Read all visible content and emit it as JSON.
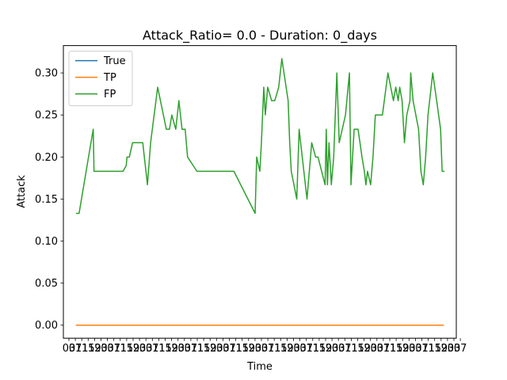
{
  "chart_data": {
    "type": "line",
    "title": "Attack_Ratio= 0.0 - Duration: 0_days",
    "xlabel": "Time",
    "ylabel": "Attack",
    "ylim": [
      -0.0155,
      0.3325
    ],
    "xlim": [
      0,
      100
    ],
    "y_ticks": [
      0.0,
      0.05,
      0.1,
      0.15,
      0.2,
      0.25,
      0.3
    ],
    "y_tick_labels": [
      "0.00",
      "0.05",
      "0.10",
      "0.15",
      "0.20",
      "0.25",
      "0.30"
    ],
    "x_tick_labels": [
      "03",
      "07",
      "11",
      "15",
      "19",
      "23",
      "03",
      "07",
      "11",
      "15",
      "19",
      "23",
      "03",
      "07",
      "11",
      "15",
      "19",
      "23",
      "03",
      "07",
      "11",
      "15",
      "19",
      "23",
      "03",
      "07",
      "11",
      "15",
      "19",
      "23",
      "03",
      "07",
      "11",
      "15",
      "19",
      "23",
      "03",
      "07",
      "11",
      "15",
      "19",
      "23",
      "03",
      "07",
      "11",
      "15",
      "19",
      "23",
      "03",
      "07",
      "11",
      "15",
      "19",
      "23",
      "03",
      "07",
      "11",
      "15",
      "19",
      "23",
      "03",
      "07"
    ],
    "grid": false,
    "legend_position": "top-left",
    "series": [
      {
        "name": "True",
        "color": "#1f77b4",
        "x": [
          3.2,
          96.8
        ],
        "y": [
          0.0,
          0.0
        ]
      },
      {
        "name": "TP",
        "color": "#ff7f0e",
        "x": [
          3.2,
          96.8
        ],
        "y": [
          0.0,
          0.0
        ]
      },
      {
        "name": "FP",
        "color": "#2ca02c",
        "x": [
          3.2,
          4.0,
          6.4,
          7.6,
          7.8,
          11.6,
          13.2,
          13.4,
          15.0,
          15.2,
          16.0,
          16.2,
          16.8,
          17.6,
          18.0,
          19.4,
          20.2,
          21.4,
          22.2,
          24.0,
          26.2,
          26.6,
          27.0,
          27.6,
          28.6,
          29.4,
          30.2,
          30.4,
          30.8,
          31.0,
          31.6,
          34.0,
          39.0,
          40.0,
          43.0,
          43.4,
          48.8,
          49.2,
          50.0,
          50.4,
          51.0,
          51.4,
          52.0,
          53.0,
          53.8,
          54.8,
          55.6,
          57.2,
          57.6,
          58.0,
          59.4,
          60.0,
          62.0,
          63.2,
          64.2,
          64.8,
          66.6,
          66.9,
          67.2,
          67.6,
          68.2,
          68.8,
          69.6,
          70.2,
          71.8,
          72.8,
          73.2,
          74.0,
          75.0,
          76.0,
          76.6,
          77.0,
          77.4,
          78.2,
          78.8,
          79.4,
          80.4,
          81.2,
          82.6,
          84.0,
          84.6,
          85.2,
          85.6,
          86.2,
          86.8,
          87.4,
          88.2,
          88.4,
          89.0,
          90.4,
          91.0,
          91.6,
          92.2,
          92.8,
          93.6,
          94.0,
          95.0,
          96.0,
          96.4,
          97.0
        ],
        "y": [
          0.133,
          0.133,
          0.2,
          0.233,
          0.183,
          0.183,
          0.183,
          0.183,
          0.183,
          0.183,
          0.19,
          0.2,
          0.2,
          0.217,
          0.217,
          0.217,
          0.217,
          0.167,
          0.217,
          0.283,
          0.233,
          0.233,
          0.233,
          0.25,
          0.233,
          0.267,
          0.233,
          0.233,
          0.233,
          0.233,
          0.2,
          0.183,
          0.183,
          0.183,
          0.183,
          0.183,
          0.133,
          0.2,
          0.183,
          0.217,
          0.283,
          0.25,
          0.283,
          0.267,
          0.267,
          0.283,
          0.317,
          0.267,
          0.217,
          0.183,
          0.15,
          0.233,
          0.15,
          0.217,
          0.2,
          0.2,
          0.167,
          0.233,
          0.167,
          0.217,
          0.167,
          0.2,
          0.3,
          0.217,
          0.25,
          0.3,
          0.167,
          0.233,
          0.233,
          0.2,
          0.183,
          0.167,
          0.183,
          0.167,
          0.2,
          0.25,
          0.25,
          0.25,
          0.3,
          0.267,
          0.283,
          0.267,
          0.283,
          0.267,
          0.217,
          0.25,
          0.267,
          0.3,
          0.267,
          0.233,
          0.183,
          0.167,
          0.2,
          0.25,
          0.283,
          0.3,
          0.267,
          0.233,
          0.183,
          0.183
        ]
      }
    ]
  }
}
